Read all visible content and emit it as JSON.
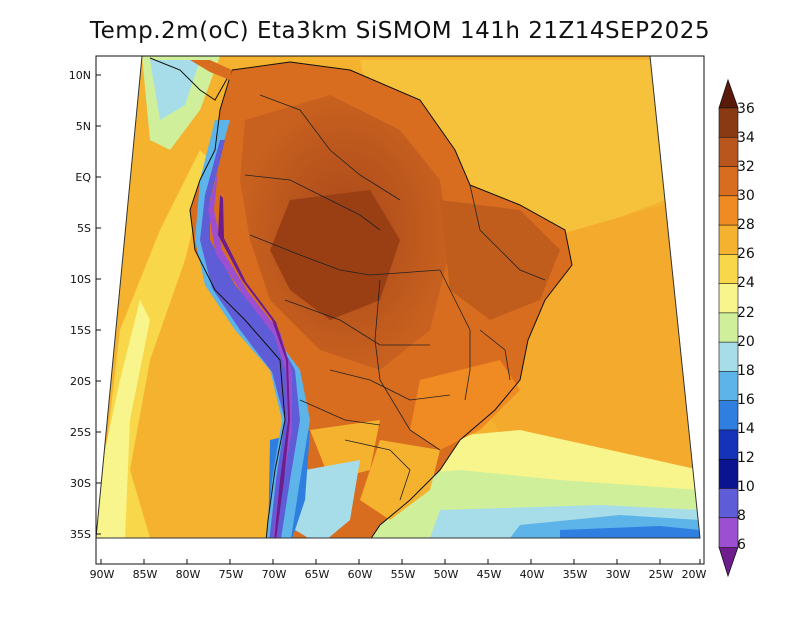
{
  "title": "Temp.2m(oC) Eta3km SiSMOM 141h 21Z14SEP2025",
  "map": {
    "lat_labels": [
      "10N",
      "5N",
      "EQ",
      "5S",
      "10S",
      "15S",
      "20S",
      "25S",
      "30S",
      "35S"
    ],
    "lon_labels": [
      "90W",
      "85W",
      "80W",
      "75W",
      "70W",
      "65W",
      "60W",
      "55W",
      "50W",
      "45W",
      "40W",
      "35W",
      "30W",
      "25W",
      "20W"
    ]
  },
  "colorbar": {
    "levels": [
      "36",
      "34",
      "32",
      "30",
      "28",
      "26",
      "24",
      "22",
      "20",
      "18",
      "16",
      "14",
      "12",
      "10",
      "8",
      "6"
    ],
    "colors": [
      "#5a1a0a",
      "#8a3a12",
      "#b8561e",
      "#d96d1f",
      "#f08a22",
      "#f5b22f",
      "#f8d84a",
      "#f8f58c",
      "#cfef9a",
      "#a7dde9",
      "#5cb4e9",
      "#2f7fe1",
      "#1533b8",
      "#0a1490",
      "#5e5cd6",
      "#9c4fd0",
      "#6d1d8c"
    ]
  }
}
